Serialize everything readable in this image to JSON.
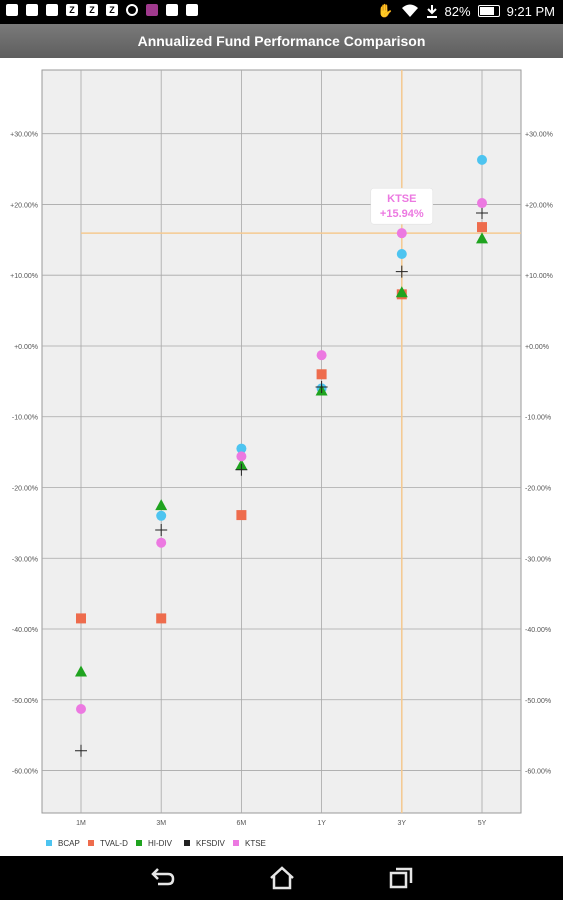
{
  "status_bar": {
    "battery": "82%",
    "time": "9:21 PM",
    "icons": [
      "notification-icon",
      "gmail-icon",
      "email-icon",
      "z-icon",
      "z-icon",
      "z-icon",
      "alarm-icon",
      "app-icon",
      "photo-icon",
      "photo-icon",
      "touch-icon",
      "wifi-icon",
      "download-icon",
      "battery-icon"
    ]
  },
  "header": {
    "title": "Annualized Fund Performance Comparison"
  },
  "colors": {
    "BCAP": "#4dc4f0",
    "TVAL-D": "#ee6c4d",
    "HI-DIV": "#1fa31f",
    "KFSDIV": "#222222",
    "KTSE": "#ec79e1",
    "crosshair": "#f5c990",
    "plot_bg": "#efefef",
    "grid": "#a8a8a8"
  },
  "tooltip": {
    "series": "KTSE",
    "value": "+15.94%"
  },
  "chart_data": {
    "type": "scatter",
    "title": "Annualized Fund Performance Comparison",
    "categories": [
      "1M",
      "3M",
      "6M",
      "1Y",
      "3Y",
      "5Y"
    ],
    "y_ticks": [
      "+30.00%",
      "+20.00%",
      "+10.00%",
      "+0.00%",
      "-10.00%",
      "-20.00%",
      "-30.00%",
      "-40.00%",
      "-50.00%",
      "-60.00%"
    ],
    "ylim": [
      -66,
      39
    ],
    "grid": true,
    "legend_position": "bottom-left",
    "crosshair": {
      "category": "3Y",
      "y": 15.94
    },
    "series": [
      {
        "name": "BCAP",
        "marker": "circle",
        "values": [
          -38.5,
          -24.0,
          -14.5,
          -6.0,
          13.0,
          26.3
        ]
      },
      {
        "name": "TVAL-D",
        "marker": "square",
        "values": [
          -38.5,
          -38.5,
          -23.9,
          -4.0,
          7.3,
          16.8
        ]
      },
      {
        "name": "HI-DIV",
        "marker": "triangle",
        "values": [
          -46.0,
          -22.5,
          -16.8,
          -6.3,
          7.6,
          15.2
        ]
      },
      {
        "name": "KFSDIV",
        "marker": "plus",
        "values": [
          -57.2,
          -26.0,
          -17.5,
          -5.8,
          10.5,
          18.8
        ]
      },
      {
        "name": "KTSE",
        "marker": "circle",
        "values": [
          -51.3,
          -27.8,
          -15.6,
          -1.3,
          15.94,
          20.2
        ]
      }
    ]
  },
  "nav": {
    "back": "back-icon",
    "home": "home-icon",
    "recents": "recents-icon"
  }
}
